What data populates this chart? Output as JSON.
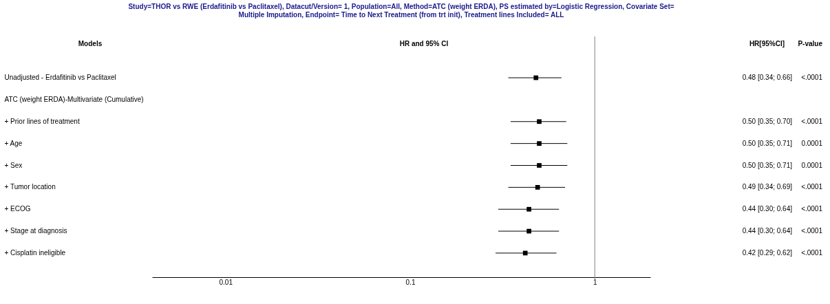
{
  "chart_data": {
    "type": "scatter",
    "title": "Study=THOR vs RWE (Erdafitinib vs Paclitaxel), Datacut/Version= 1, Population=All, Method=ATC (weight ERDA), PS estimated by=Logistic Regression, Covariate Set= Multiple Imputation, Endpoint= Time to Next Treatment (from trt init), Treatment lines Included= ALL",
    "xlabel": "HR and 95% CI",
    "ylabel": "Models",
    "categories": [
      "Unadjusted - Erdafitinib vs Paclitaxel",
      "ATC (weight ERDA)-Multivariate (Cumulative)",
      "+ Prior lines of treatment",
      "+ Age",
      "+ Sex",
      "+ Tumor location",
      "+ ECOG",
      "+ Stage at diagnosis",
      "+ Cisplatin ineligible"
    ],
    "values": [
      0.48,
      null,
      0.5,
      0.5,
      0.5,
      0.49,
      0.44,
      0.44,
      0.42
    ],
    "errors": [
      [
        0.34,
        0.66
      ],
      null,
      [
        0.35,
        0.7
      ],
      [
        0.35,
        0.71
      ],
      [
        0.35,
        0.71
      ],
      [
        0.34,
        0.69
      ],
      [
        0.3,
        0.64
      ],
      [
        0.3,
        0.64
      ],
      [
        0.29,
        0.62
      ]
    ],
    "value_labels": [
      "0.48 [0.34; 0.66]",
      null,
      "0.50 [0.35; 0.70]",
      "0.50 [0.35; 0.71]",
      "0.50 [0.35; 0.71]",
      "0.49 [0.34; 0.69]",
      "0.44 [0.30; 0.64]",
      "0.44 [0.30; 0.64]",
      "0.42 [0.29; 0.62]"
    ],
    "annotations": [
      "HR[95%CI]",
      "P-value",
      "<.0001",
      "<.0001",
      "0.0001",
      "0.0001",
      "<.0001",
      "<.0001",
      "<.0001",
      "<.0001"
    ],
    "color": "#000000",
    "log": "x",
    "xlim": [
      0.004,
      2
    ],
    "xticks": [
      0.01,
      0.1,
      1
    ],
    "ref_lines": [
      {
        "axis": "x",
        "value": 1,
        "color": "#808080"
      }
    ],
    "orientation": "horizontal",
    "grid": false,
    "marker": "square"
  }
}
